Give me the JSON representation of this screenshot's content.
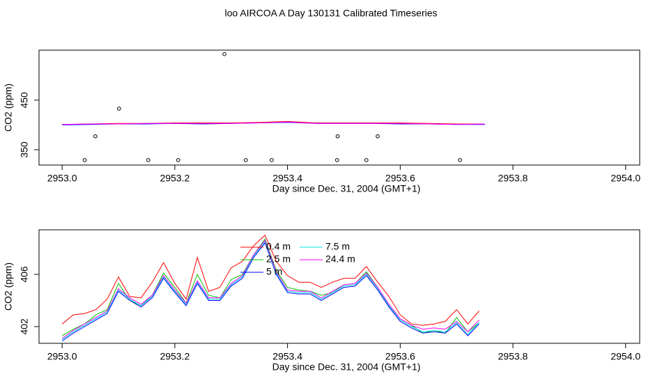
{
  "title": "loo AIRCOA A  Day 130131  Calibrated Timeseries",
  "chart_data": [
    {
      "type": "line",
      "ylabel": "CO2 (ppm)",
      "xlabel": "Day since Dec. 31, 2004 (GMT+1)",
      "xlim": [
        2952.959,
        2954.025
      ],
      "ylim": [
        319,
        551
      ],
      "xticks": [
        {
          "value": 2953.0,
          "label": "2953.0"
        },
        {
          "value": 2953.2,
          "label": "2953.2"
        },
        {
          "value": 2953.4,
          "label": "2953.4"
        },
        {
          "value": 2953.6,
          "label": "2953.6"
        },
        {
          "value": 2953.8,
          "label": "2953.8"
        },
        {
          "value": 2954.0,
          "label": "2954.0"
        }
      ],
      "yticks": [
        350,
        450
      ],
      "x": [
        2953.0,
        2953.05,
        2953.1,
        2953.15,
        2953.2,
        2953.25,
        2953.3,
        2953.35,
        2953.4,
        2953.45,
        2953.5,
        2953.55,
        2953.6,
        2953.65,
        2953.7,
        2953.75
      ],
      "series": [
        {
          "color": "#ff0000",
          "values": [
            401,
            402,
            403,
            403,
            404,
            404,
            404,
            405,
            407,
            404,
            404,
            404,
            404,
            403,
            402,
            402
          ]
        },
        {
          "color": "#0000ff",
          "values": [
            400,
            401,
            402,
            402,
            403,
            402,
            403,
            404,
            405,
            403,
            403,
            403,
            402,
            402,
            401,
            401
          ]
        },
        {
          "color": "#ff00ff",
          "values": [
            401,
            402,
            402,
            403,
            403,
            403,
            403,
            404,
            406,
            403,
            403,
            403,
            403,
            402,
            401,
            402
          ]
        }
      ],
      "points": {
        "color": "#000000",
        "x": [
          2953.04,
          2953.059,
          2953.101,
          2953.153,
          2953.206,
          2953.288,
          2953.326,
          2953.372,
          2953.488,
          2953.489,
          2953.54,
          2953.56,
          2953.706
        ],
        "values": [
          329,
          377,
          433,
          329,
          329,
          543,
          329,
          329,
          329,
          377,
          329,
          377,
          329
        ]
      }
    },
    {
      "type": "line",
      "ylabel": "CO2 (ppm)",
      "xlabel": "Day since Dec. 31, 2004 (GMT+1)",
      "xlim": [
        2952.959,
        2954.025
      ],
      "ylim": [
        400.72,
        409.41
      ],
      "xticks": [
        {
          "value": 2953.0,
          "label": "2953.0"
        },
        {
          "value": 2953.2,
          "label": "2953.2"
        },
        {
          "value": 2953.4,
          "label": "2953.4"
        },
        {
          "value": 2953.6,
          "label": "2953.6"
        },
        {
          "value": 2953.8,
          "label": "2953.8"
        },
        {
          "value": 2954.0,
          "label": "2954.0"
        }
      ],
      "yticks": [
        402,
        406
      ],
      "legend": "top",
      "x": [
        2953.0,
        2953.02,
        2953.04,
        2953.06,
        2953.08,
        2953.1,
        2953.12,
        2953.14,
        2953.16,
        2953.18,
        2953.2,
        2953.22,
        2953.24,
        2953.26,
        2953.28,
        2953.3,
        2953.32,
        2953.34,
        2953.36,
        2953.38,
        2953.4,
        2953.42,
        2953.44,
        2953.46,
        2953.48,
        2953.5,
        2953.52,
        2953.54,
        2953.56,
        2953.58,
        2953.6,
        2953.62,
        2953.64,
        2953.66,
        2953.68,
        2953.7,
        2953.72,
        2953.74
      ],
      "series": [
        {
          "name": "0.4 m",
          "color": "#ff0000",
          "values": [
            402.2,
            402.9,
            403.0,
            403.3,
            404.1,
            405.8,
            404.3,
            404.2,
            405.4,
            406.9,
            405.3,
            404.1,
            407.3,
            404.7,
            405.0,
            406.5,
            407.0,
            408.2,
            409.0,
            407.0,
            405.9,
            405.4,
            405.4,
            405.0,
            405.4,
            405.7,
            405.7,
            406.6,
            405.4,
            404.3,
            402.9,
            402.2,
            402.1,
            402.2,
            402.4,
            403.3,
            402.2,
            403.2
          ]
        },
        {
          "name": "2.5 m",
          "color": "#00c000",
          "values": [
            401.3,
            401.8,
            402.2,
            402.9,
            403.3,
            405.3,
            404.0,
            403.6,
            404.4,
            406.1,
            405.0,
            403.8,
            406.0,
            404.4,
            404.2,
            405.6,
            406.0,
            407.5,
            408.7,
            406.3,
            405.0,
            404.8,
            404.7,
            404.4,
            404.6,
            405.2,
            405.3,
            406.2,
            405.0,
            403.6,
            402.6,
            402.1,
            401.5,
            401.7,
            401.5,
            402.7,
            401.6,
            402.3
          ]
        },
        {
          "name": "5 m",
          "color": "#0000ff",
          "values": [
            400.9,
            401.5,
            402.0,
            402.5,
            403.0,
            404.7,
            404.0,
            403.5,
            404.2,
            405.7,
            404.6,
            403.6,
            405.3,
            404.0,
            404.0,
            405.1,
            405.7,
            407.3,
            408.4,
            406.0,
            404.6,
            404.5,
            404.5,
            404.0,
            404.5,
            405.0,
            405.1,
            405.9,
            404.8,
            403.5,
            402.4,
            401.9,
            401.5,
            401.6,
            401.5,
            402.2,
            401.3,
            402.2
          ]
        },
        {
          "name": "7.5 m",
          "color": "#00e5e5",
          "values": [
            401.0,
            401.6,
            402.1,
            402.6,
            403.1,
            404.8,
            404.1,
            403.6,
            404.3,
            405.8,
            404.7,
            403.7,
            405.4,
            404.1,
            404.1,
            405.2,
            405.8,
            407.4,
            408.5,
            406.1,
            404.7,
            404.6,
            404.6,
            404.1,
            404.6,
            405.1,
            405.2,
            406.0,
            404.9,
            403.6,
            402.5,
            402.0,
            401.6,
            401.7,
            401.6,
            402.3,
            401.4,
            402.3
          ]
        },
        {
          "name": "24.4 m",
          "color": "#ff00ff",
          "values": [
            401.1,
            401.7,
            402.2,
            402.7,
            403.2,
            404.9,
            404.2,
            403.7,
            404.4,
            405.9,
            404.8,
            403.8,
            405.5,
            404.2,
            404.2,
            405.3,
            405.9,
            407.5,
            408.6,
            406.2,
            404.8,
            404.7,
            404.7,
            404.2,
            404.7,
            405.2,
            405.3,
            406.1,
            405.0,
            403.7,
            402.6,
            402.1,
            401.8,
            401.9,
            401.8,
            402.4,
            401.6,
            402.5
          ]
        }
      ]
    }
  ]
}
